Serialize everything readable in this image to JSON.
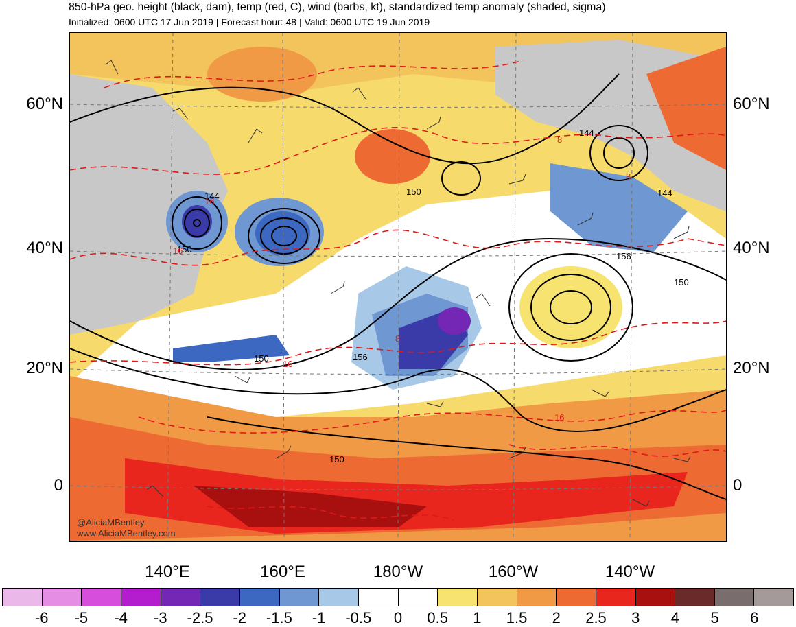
{
  "header": {
    "title": "850-hPa geo. height (black, dam), temp (red, C), wind (barbs, kt), standardized temp anomaly (shaded, sigma)",
    "subtitle": "Initialized: 0600 UTC 17 Jun 2019 | Forecast hour: 48 | Valid: 0600 UTC 19 Jun 2019"
  },
  "map": {
    "lat_labels": [
      "60°N",
      "40°N",
      "20°N",
      "0"
    ],
    "lon_labels": [
      "140°E",
      "160°E",
      "180°W",
      "160°W",
      "140°W"
    ],
    "height_contour_labels": [
      "144",
      "150",
      "150",
      "156",
      "150",
      "144",
      "144",
      "156",
      "150",
      "150"
    ],
    "temp_contour_labels": [
      "8",
      "8",
      "16",
      "16",
      "8",
      "16",
      "16"
    ],
    "watermark": {
      "handle": "@AliciaMBentley",
      "url": "www.AliciaMBentley.com"
    }
  },
  "colorbar": {
    "labels": [
      "-6",
      "-5",
      "-4",
      "-3",
      "-2.5",
      "-2",
      "-1.5",
      "-1",
      "-0.5",
      "0",
      "0.5",
      "1",
      "1.5",
      "2",
      "2.5",
      "3",
      "4",
      "5",
      "6"
    ],
    "colors": [
      "#ebb9e9",
      "#e58de4",
      "#d64fdc",
      "#b31dcd",
      "#7327b4",
      "#3a3aa8",
      "#3d68c1",
      "#6f97d2",
      "#a7c8e6",
      "#ffffff",
      "#ffffff",
      "#f7e470",
      "#f3c45c",
      "#f19a45",
      "#ee6a33",
      "#e8261e",
      "#a80f0f",
      "#6b2a2a",
      "#7a6d6d",
      "#a59a9a"
    ]
  }
}
